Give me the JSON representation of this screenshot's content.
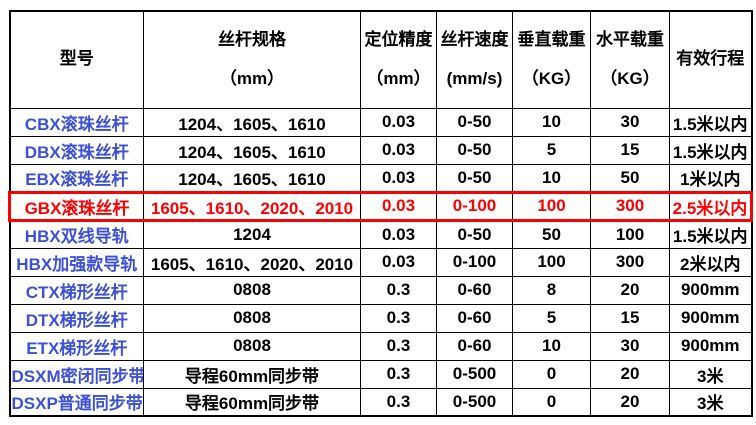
{
  "colors": {
    "model_text": "#3b50d6",
    "highlight": "#fe0000",
    "border": "#000000",
    "text": "#000000",
    "background": "#ffffff"
  },
  "table": {
    "field_order": [
      "model",
      "spec",
      "accuracy",
      "speed",
      "vertical_load",
      "horizontal_load",
      "stroke"
    ],
    "columns": [
      {
        "key": "model",
        "line1": "型号",
        "line2": ""
      },
      {
        "key": "spec",
        "line1": "丝杆规格",
        "line2": "（mm）"
      },
      {
        "key": "accuracy",
        "line1": "定位精度",
        "line2": "（mm）"
      },
      {
        "key": "speed",
        "line1": "丝杆速度",
        "line2": "(mm/s)"
      },
      {
        "key": "vertical-load",
        "line1": "垂直载重",
        "line2": "（KG）"
      },
      {
        "key": "horizontal-load",
        "line1": "水平载重",
        "line2": "（KG）"
      },
      {
        "key": "stroke",
        "line1": "有效行程",
        "line2": ""
      }
    ],
    "rows": [
      {
        "model": "CBX滚珠丝杆",
        "spec": "1204、1605、1610",
        "accuracy": "0.03",
        "speed": "0-50",
        "vertical_load": "10",
        "horizontal_load": "30",
        "stroke": "1.5米以内",
        "highlight": false
      },
      {
        "model": "DBX滚珠丝杆",
        "spec": "1204、1605、1610",
        "accuracy": "0.03",
        "speed": "0-50",
        "vertical_load": "5",
        "horizontal_load": "15",
        "stroke": "1.5米以内",
        "highlight": false
      },
      {
        "model": "EBX滚珠丝杆",
        "spec": "1204、1605、1610",
        "accuracy": "0.03",
        "speed": "0-50",
        "vertical_load": "10",
        "horizontal_load": "50",
        "stroke": "1米以内",
        "highlight": false
      },
      {
        "model": "GBX滚珠丝杆",
        "spec": "1605、1610、2020、2010",
        "accuracy": "0.03",
        "speed": "0-100",
        "vertical_load": "100",
        "horizontal_load": "300",
        "stroke": "2.5米以内",
        "highlight": true
      },
      {
        "model": "HBX双线导轨",
        "spec": "1204",
        "accuracy": "0.03",
        "speed": "0-50",
        "vertical_load": "50",
        "horizontal_load": "100",
        "stroke": "1.5米以内",
        "highlight": false
      },
      {
        "model": "HBX加强款导轨",
        "spec": "1605、1610、2020、2010",
        "accuracy": "0.03",
        "speed": "0-100",
        "vertical_load": "100",
        "horizontal_load": "300",
        "stroke": "2米以内",
        "highlight": false
      },
      {
        "model": "CTX梯形丝杆",
        "spec": "0808",
        "accuracy": "0.3",
        "speed": "0-60",
        "vertical_load": "8",
        "horizontal_load": "20",
        "stroke": "900mm",
        "highlight": false
      },
      {
        "model": "DTX梯形丝杆",
        "spec": "0808",
        "accuracy": "0.3",
        "speed": "0-60",
        "vertical_load": "5",
        "horizontal_load": "15",
        "stroke": "900mm",
        "highlight": false
      },
      {
        "model": "ETX梯形丝杆",
        "spec": "0808",
        "accuracy": "0.3",
        "speed": "0-60",
        "vertical_load": "10",
        "horizontal_load": "30",
        "stroke": "900mm",
        "highlight": false
      },
      {
        "model": "DSXM密闭同步带",
        "spec": "导程60mm同步带",
        "accuracy": "0.3",
        "speed": "0-500",
        "vertical_load": "0",
        "horizontal_load": "20",
        "stroke": "3米",
        "highlight": false
      },
      {
        "model": "DSXP普通同步带",
        "spec": "导程60mm同步带",
        "accuracy": "0.3",
        "speed": "0-500",
        "vertical_load": "0",
        "horizontal_load": "20",
        "stroke": "3米",
        "highlight": false
      }
    ]
  }
}
